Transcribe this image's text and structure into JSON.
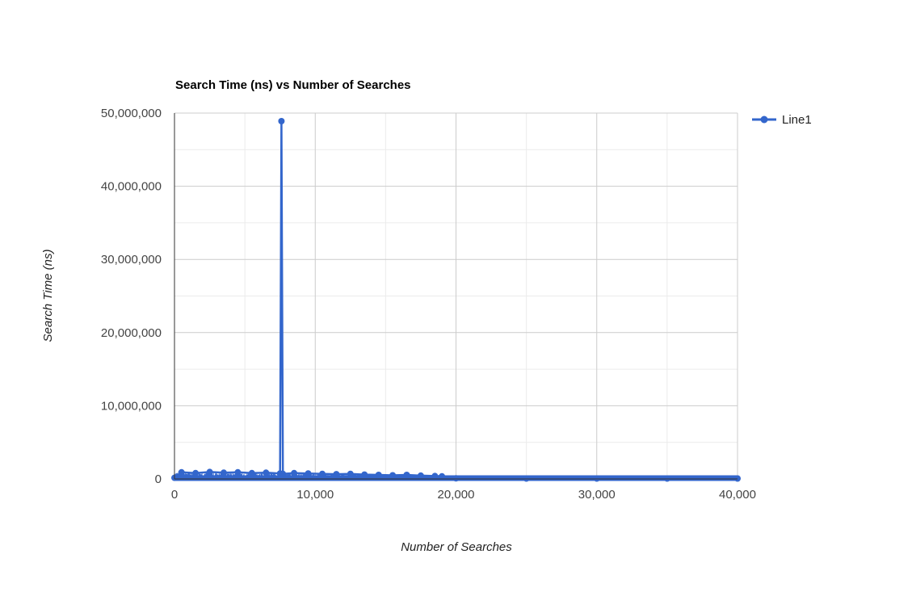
{
  "chart_data": {
    "type": "line",
    "title": "Search Time (ns) vs Number of Searches",
    "xlabel": "Number of Searches",
    "ylabel": "Search Time (ns)",
    "xlim": [
      0,
      40000
    ],
    "ylim": [
      0,
      50000000
    ],
    "x_ticks": [
      0,
      10000,
      20000,
      30000,
      40000
    ],
    "x_tick_labels": [
      "0",
      "10,000",
      "20,000",
      "30,000",
      "40,000"
    ],
    "y_ticks": [
      0,
      10000000,
      20000000,
      30000000,
      40000000,
      50000000
    ],
    "y_tick_labels": [
      "0",
      "10,000,000",
      "20,000,000",
      "30,000,000",
      "40,000,000",
      "50,000,000"
    ],
    "grid": true,
    "legend": "right",
    "colors": {
      "line": "#3366cc",
      "grid_major": "#cccccc",
      "grid_minor": "#ebebeb",
      "axis": "#333333"
    },
    "series": [
      {
        "name": "Line1",
        "noise_band": {
          "x_start": 0,
          "x_end": 19000,
          "y_max_start": 1000000,
          "y_max_end": 500000
        },
        "points": [
          [
            0,
            150000
          ],
          [
            500,
            900000
          ],
          [
            1500,
            800000
          ],
          [
            2500,
            950000
          ],
          [
            3500,
            850000
          ],
          [
            4500,
            900000
          ],
          [
            5500,
            800000
          ],
          [
            6500,
            850000
          ],
          [
            7500,
            750000
          ],
          [
            7600,
            48900000
          ],
          [
            7700,
            700000
          ],
          [
            8500,
            800000
          ],
          [
            9500,
            750000
          ],
          [
            10500,
            700000
          ],
          [
            11500,
            650000
          ],
          [
            12500,
            700000
          ],
          [
            13500,
            600000
          ],
          [
            14500,
            550000
          ],
          [
            15500,
            500000
          ],
          [
            16500,
            550000
          ],
          [
            17500,
            450000
          ],
          [
            18500,
            400000
          ],
          [
            19000,
            350000
          ],
          [
            20000,
            80000
          ],
          [
            25000,
            60000
          ],
          [
            30000,
            60000
          ],
          [
            35000,
            50000
          ],
          [
            40000,
            50000
          ]
        ]
      }
    ]
  }
}
